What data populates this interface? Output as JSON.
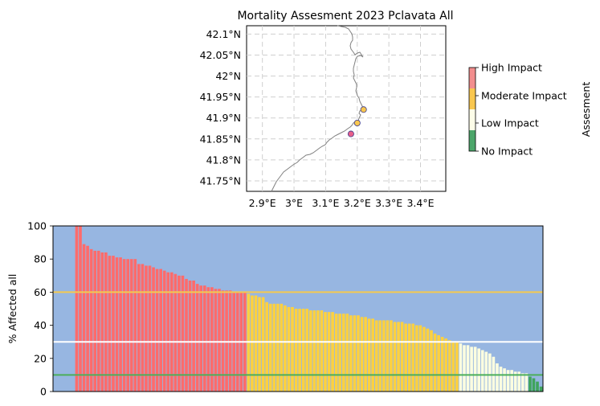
{
  "chart_data": [
    {
      "type": "map",
      "title": "Mortality Assesment 2023 Pclavata All",
      "lat_ticks": [
        "42.1°N",
        "42.05°N",
        "42°N",
        "41.95°N",
        "41.9°N",
        "41.85°N",
        "41.8°N",
        "41.75°N"
      ],
      "lat_values": [
        42.1,
        42.05,
        42.0,
        41.95,
        41.9,
        41.85,
        41.8,
        41.75
      ],
      "lon_ticks": [
        "2.9°E",
        "3°E",
        "3.1°E",
        "3.2°E",
        "3.3°E",
        "3.4°E"
      ],
      "lon_values": [
        2.9,
        3.0,
        3.1,
        3.2,
        3.3,
        3.4
      ],
      "xlim": [
        2.85,
        3.48
      ],
      "ylim": [
        41.725,
        42.12
      ],
      "grid": true,
      "points": [
        {
          "lon": 3.22,
          "lat": 41.92,
          "color": "#f9c74f"
        },
        {
          "lon": 3.2,
          "lat": 41.888,
          "color": "#f9c74f"
        },
        {
          "lon": 3.18,
          "lat": 41.862,
          "color": "#e8608a"
        }
      ],
      "colorbar": {
        "label": "Assesment",
        "entries": [
          {
            "label": "High Impact",
            "color": "#f28e8e"
          },
          {
            "label": "Moderate Impact",
            "color": "#f9c74f"
          },
          {
            "label": "Low Impact",
            "color": "#fdfde8"
          },
          {
            "label": "No Impact",
            "color": "#4ca66a"
          }
        ]
      }
    },
    {
      "type": "bar",
      "ylabel": "% Affected all",
      "ylim": [
        0,
        100
      ],
      "yticks": [
        0,
        20,
        40,
        60,
        80,
        100
      ],
      "background": "#97b6e1",
      "thresholds": [
        {
          "value": 60,
          "color": "#f4c94f"
        },
        {
          "value": 30,
          "color": "#ffffff"
        },
        {
          "value": 10,
          "color": "#4cae5a"
        }
      ],
      "colors": {
        "high": "#ff6b6b",
        "moderate": "#fdd13f",
        "low": "#fbfde0",
        "none": "#3fa45c"
      },
      "values": [
        100,
        100,
        89,
        88,
        86,
        85,
        85,
        84,
        84,
        82,
        82,
        81,
        81,
        80,
        80,
        80,
        80,
        77,
        77,
        76,
        76,
        75,
        74,
        74,
        73,
        72,
        72,
        71,
        70,
        70,
        68,
        67,
        67,
        65,
        64,
        64,
        63,
        63,
        62,
        62,
        61,
        61,
        61,
        60,
        60,
        60,
        60,
        59,
        58,
        58,
        57,
        57,
        54,
        53,
        53,
        53,
        53,
        52,
        51,
        51,
        50,
        50,
        50,
        50,
        49,
        49,
        49,
        49,
        48,
        48,
        48,
        47,
        47,
        47,
        47,
        46,
        46,
        46,
        45,
        45,
        44,
        44,
        43,
        43,
        43,
        43,
        43,
        42,
        42,
        42,
        41,
        41,
        41,
        40,
        40,
        39,
        38,
        37,
        35,
        34,
        33,
        32,
        31,
        30,
        30,
        29,
        28,
        28,
        27,
        27,
        26,
        25,
        24,
        23,
        21,
        17,
        15,
        14,
        13,
        13,
        12,
        12,
        11,
        11,
        9,
        8,
        6,
        3
      ],
      "bar_start_index": 6,
      "total_slots": 134
    }
  ]
}
